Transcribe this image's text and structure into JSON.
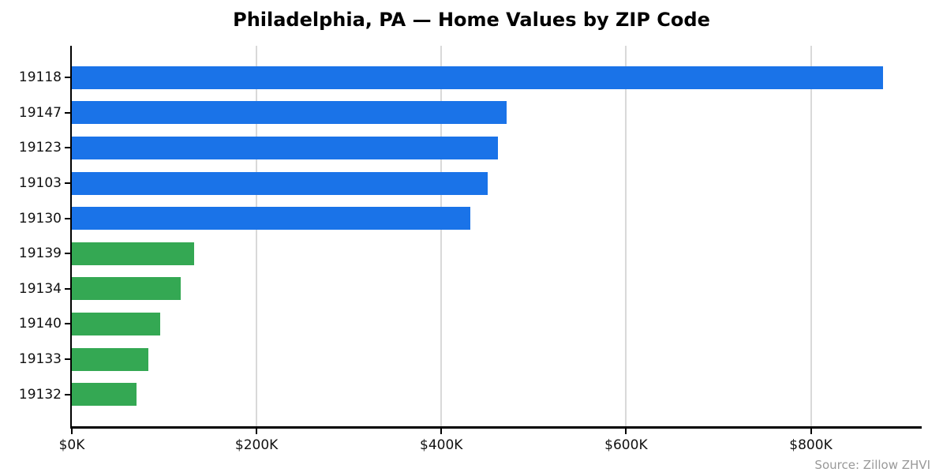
{
  "title": "Philadelphia, PA — Home Values by ZIP Code",
  "source_note": "Source: Zillow ZHVI",
  "chart_data": {
    "type": "bar",
    "orientation": "horizontal",
    "title": "Philadelphia, PA — Home Values by ZIP Code",
    "xlabel": "",
    "ylabel": "",
    "categories": [
      "19118",
      "19147",
      "19123",
      "19103",
      "19130",
      "19139",
      "19134",
      "19140",
      "19133",
      "19132"
    ],
    "values": [
      878000,
      471000,
      461000,
      450000,
      431000,
      132000,
      118000,
      96000,
      83000,
      70000
    ],
    "bar_colors": [
      "#1a73e8",
      "#1a73e8",
      "#1a73e8",
      "#1a73e8",
      "#1a73e8",
      "#34a853",
      "#34a853",
      "#34a853",
      "#34a853",
      "#34a853"
    ],
    "color_groups": {
      "high_value_blue": "#1a73e8",
      "low_value_green": "#34a853"
    },
    "x_ticks": [
      "$0K",
      "$200K",
      "$400K",
      "$600K",
      "$800K"
    ],
    "x_tick_values": [
      0,
      200000,
      400000,
      600000,
      800000
    ],
    "xlim": [
      0,
      920000
    ],
    "grid": "vertical",
    "gridline_color": "#d9d9d9",
    "axis_color": "#000000",
    "source_text_color": "#999999",
    "legend": "none"
  }
}
